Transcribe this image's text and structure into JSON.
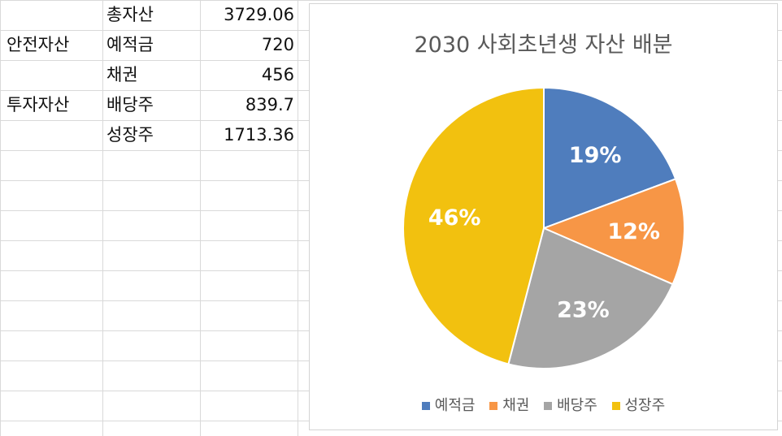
{
  "table": {
    "rows": [
      {
        "group": "",
        "item": "총자산",
        "value": "3729.06"
      },
      {
        "group": "안전자산",
        "item": "예적금",
        "value": "720"
      },
      {
        "group": "",
        "item": "채권",
        "value": "456"
      },
      {
        "group": "투자자산",
        "item": "배당주",
        "value": "839.7"
      },
      {
        "group": "",
        "item": "성장주",
        "value": "1713.36"
      }
    ]
  },
  "chart_data": {
    "type": "pie",
    "title": "2030 사회초년생 자산 배분",
    "categories": [
      "예적금",
      "채권",
      "배당주",
      "성장주"
    ],
    "values": [
      720,
      456,
      839.7,
      1713.36
    ],
    "labels": [
      "19%",
      "12%",
      "23%",
      "46%"
    ],
    "colors": [
      "#4f7dbd",
      "#f79646",
      "#a5a5a5",
      "#f2c10f"
    ],
    "legend_position": "bottom"
  }
}
